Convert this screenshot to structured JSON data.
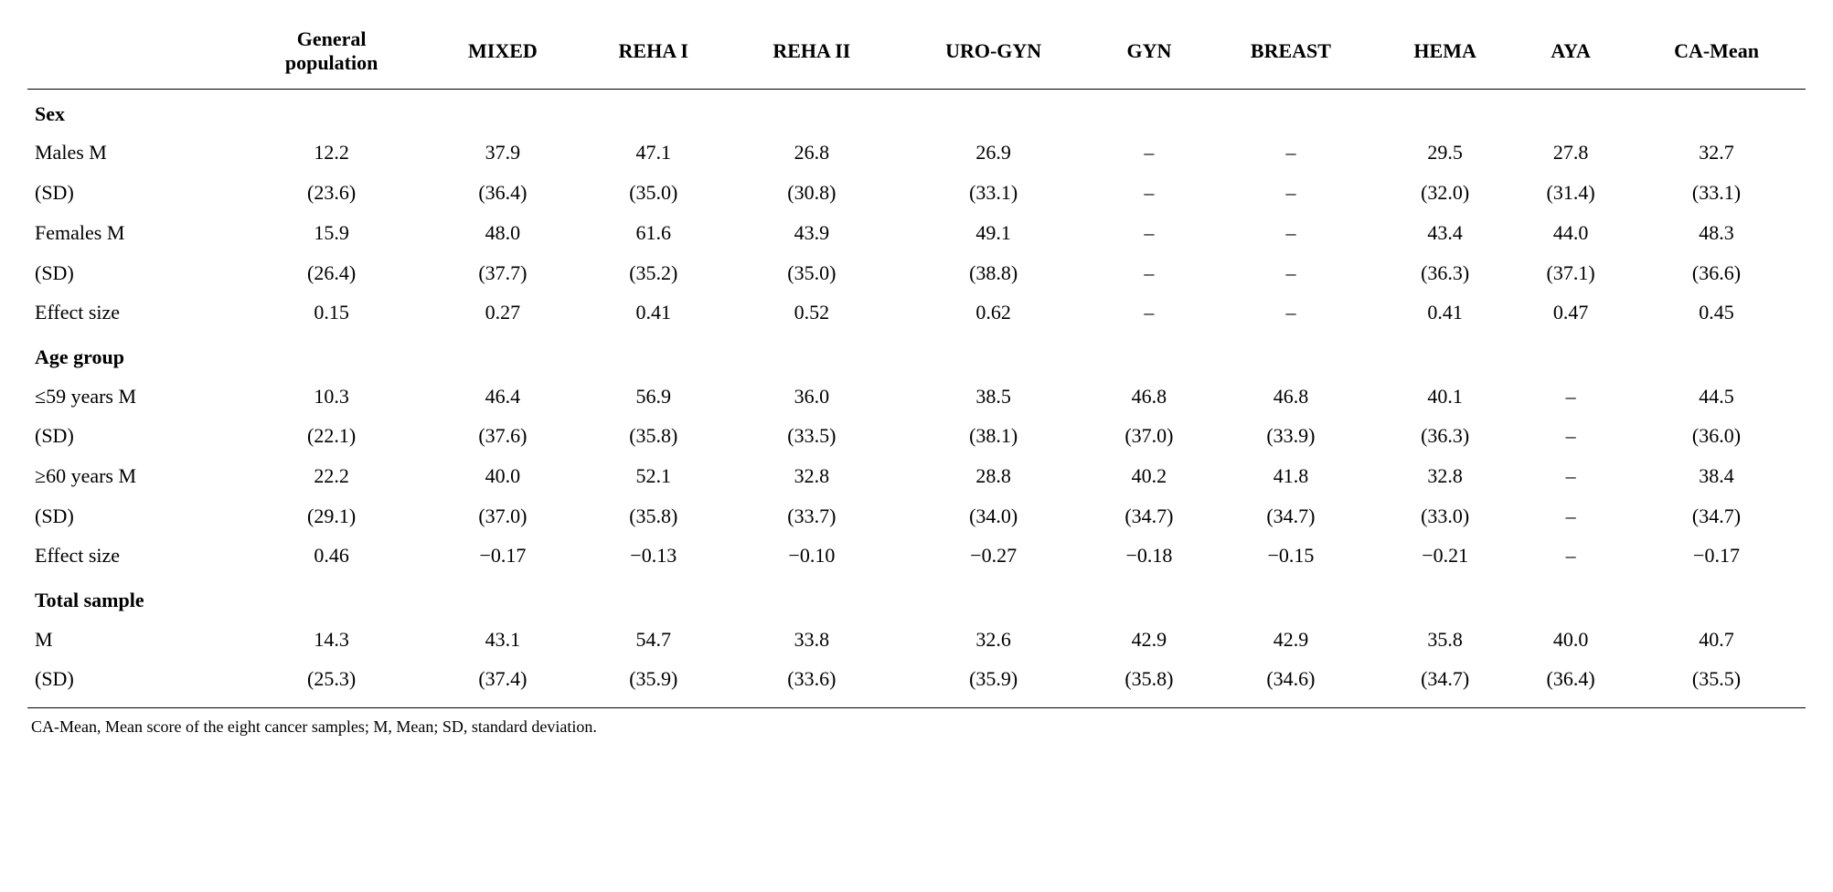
{
  "colors": {
    "background": "#ffffff",
    "text": "#000000",
    "rule": "#000000"
  },
  "typography": {
    "body_font": "Minion Pro / Times New Roman serif",
    "table_fontsize_pt": 16,
    "footnote_fontsize_pt": 13,
    "header_weight": 700
  },
  "table": {
    "columns": [
      "",
      "General\npopulation",
      "MIXED",
      "REHA I",
      "REHA II",
      "URO-GYN",
      "GYN",
      "BREAST",
      "HEMA",
      "AYA",
      "CA-Mean"
    ],
    "sections": [
      {
        "title": "Sex",
        "rows": [
          [
            "Males M",
            "12.2",
            "37.9",
            "47.1",
            "26.8",
            "26.9",
            "–",
            "–",
            "29.5",
            "27.8",
            "32.7"
          ],
          [
            "(SD)",
            "(23.6)",
            "(36.4)",
            "(35.0)",
            "(30.8)",
            "(33.1)",
            "–",
            "–",
            "(32.0)",
            "(31.4)",
            "(33.1)"
          ],
          [
            "Females M",
            "15.9",
            "48.0",
            "61.6",
            "43.9",
            "49.1",
            "–",
            "–",
            "43.4",
            "44.0",
            "48.3"
          ],
          [
            "(SD)",
            "(26.4)",
            "(37.7)",
            "(35.2)",
            "(35.0)",
            "(38.8)",
            "–",
            "–",
            "(36.3)",
            "(37.1)",
            "(36.6)"
          ],
          [
            "Effect size",
            "0.15",
            "0.27",
            "0.41",
            "0.52",
            "0.62",
            "–",
            "–",
            "0.41",
            "0.47",
            "0.45"
          ]
        ]
      },
      {
        "title": "Age group",
        "rows": [
          [
            "≤59 years M",
            "10.3",
            "46.4",
            "56.9",
            "36.0",
            "38.5",
            "46.8",
            "46.8",
            "40.1",
            "–",
            "44.5"
          ],
          [
            "(SD)",
            "(22.1)",
            "(37.6)",
            "(35.8)",
            "(33.5)",
            "(38.1)",
            "(37.0)",
            "(33.9)",
            "(36.3)",
            "–",
            "(36.0)"
          ],
          [
            "≥60 years M",
            "22.2",
            "40.0",
            "52.1",
            "32.8",
            "28.8",
            "40.2",
            "41.8",
            "32.8",
            "–",
            "38.4"
          ],
          [
            "(SD)",
            "(29.1)",
            "(37.0)",
            "(35.8)",
            "(33.7)",
            "(34.0)",
            "(34.7)",
            "(34.7)",
            "(33.0)",
            "–",
            "(34.7)"
          ],
          [
            "Effect size",
            "0.46",
            "−0.17",
            "−0.13",
            "−0.10",
            "−0.27",
            "−0.18",
            "−0.15",
            "−0.21",
            "–",
            "−0.17"
          ]
        ]
      },
      {
        "title": "Total sample",
        "rows": [
          [
            "M",
            "14.3",
            "43.1",
            "54.7",
            "33.8",
            "32.6",
            "42.9",
            "42.9",
            "35.8",
            "40.0",
            "40.7"
          ],
          [
            "(SD)",
            "(25.3)",
            "(37.4)",
            "(35.9)",
            "(33.6)",
            "(35.9)",
            "(35.8)",
            "(34.6)",
            "(34.7)",
            "(36.4)",
            "(35.5)"
          ]
        ]
      }
    ]
  },
  "footnote": "CA-Mean, Mean score of the eight cancer samples; M, Mean; SD, standard deviation."
}
